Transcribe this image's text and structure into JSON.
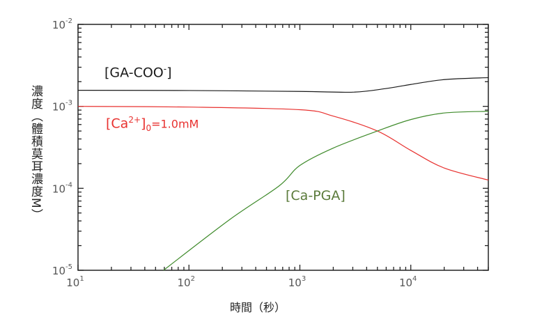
{
  "chart_data": {
    "type": "line",
    "title": "",
    "xlabel": "時間（秒）",
    "ylabel": "濃度（體積莫耳濃度M）",
    "xscale": "log",
    "yscale": "log",
    "xlim": [
      10,
      50000
    ],
    "ylim": [
      1e-05,
      0.01
    ],
    "x_ticks": [
      {
        "base": "10",
        "exp": "1"
      },
      {
        "base": "10",
        "exp": "2"
      },
      {
        "base": "10",
        "exp": "3"
      },
      {
        "base": "10",
        "exp": "4"
      }
    ],
    "y_ticks": [
      {
        "base": "10",
        "exp": "-2"
      },
      {
        "base": "10",
        "exp": "-3"
      },
      {
        "base": "10",
        "exp": "-4"
      },
      {
        "base": "10",
        "exp": "-5"
      }
    ],
    "grid": false,
    "series": [
      {
        "name": "[GA-COO⁻]",
        "label_main": "[GA-COO",
        "label_sup": "-",
        "label_end": "]",
        "color": "#1a1a1a",
        "x": [
          10,
          100,
          1000,
          3000,
          6000,
          10000,
          20000,
          50000
        ],
        "y": [
          0.00157,
          0.00156,
          0.00152,
          0.00149,
          0.00165,
          0.00185,
          0.00212,
          0.00224
        ]
      },
      {
        "name": "[Ca2+]0=1.0mM",
        "label_main": "[Ca",
        "label_sup": "2+",
        "label_end": "]",
        "label_sub": "0",
        "label_tail": "=1.0mM",
        "color": "#e8312f",
        "x": [
          10,
          100,
          1000,
          2000,
          5000,
          10000,
          20000,
          50000
        ],
        "y": [
          0.001,
          0.00098,
          0.00091,
          0.00076,
          0.0005,
          0.00029,
          0.000177,
          0.000126
        ]
      },
      {
        "name": "[Ca-PGA]",
        "label_main": "[Ca-PGA]",
        "color": "#3e8a2a",
        "label_color": "#5a7a3a",
        "x": [
          59,
          234,
          650,
          1000,
          2000,
          5000,
          10000,
          20000,
          50000
        ],
        "y": [
          1e-05,
          4.17e-05,
          0.000107,
          0.00019,
          0.00031,
          0.0005,
          0.00069,
          0.00083,
          0.00087
        ]
      }
    ]
  }
}
